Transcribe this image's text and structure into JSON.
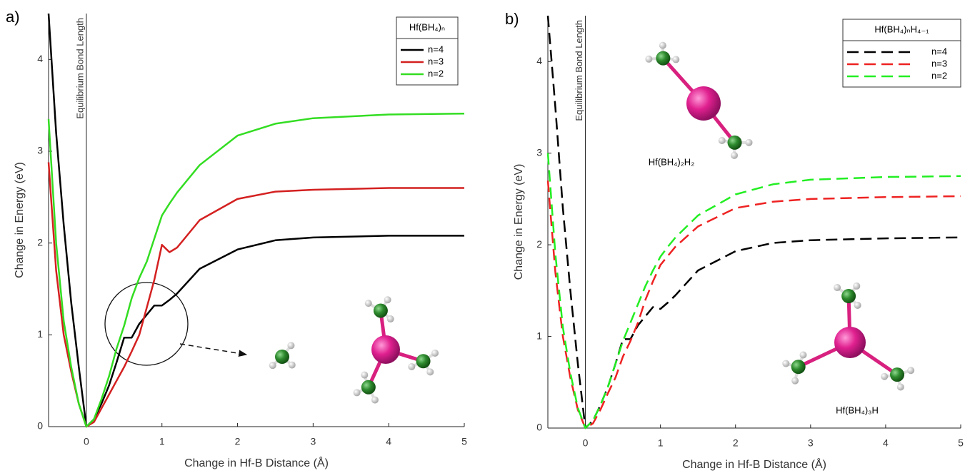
{
  "chart_data": [
    {
      "type": "line",
      "panel_label": "a)",
      "line_style": "solid",
      "x_label": "Change in Hf-B Distance (Å)",
      "y_label": "Change in Energy (eV)",
      "annotation": "Equilibrium Bond Length",
      "legend_title": "Hf(BH₄)ₙ",
      "legend": "upper right",
      "x": [
        -0.5,
        -0.4,
        -0.3,
        -0.2,
        -0.1,
        0,
        0.1,
        0.2,
        0.3,
        0.4,
        0.5,
        0.6,
        0.7,
        0.8,
        0.9,
        1.0,
        1.1,
        1.2,
        1.5,
        2,
        2.5,
        3,
        4,
        5
      ],
      "series": [
        {
          "name": "n=4",
          "color": "#000000",
          "values": [
            4.5,
            3.2,
            2.2,
            1.35,
            0.65,
            0,
            0.08,
            0.25,
            0.45,
            0.7,
            0.97,
            0.97,
            1.12,
            1.22,
            1.32,
            1.32,
            1.38,
            1.45,
            1.72,
            1.93,
            2.03,
            2.06,
            2.08,
            2.08
          ]
        },
        {
          "name": "n=3",
          "color": "#d42020",
          "values": [
            2.88,
            1.7,
            1.0,
            0.6,
            0.25,
            0,
            0.05,
            0.2,
            0.35,
            0.5,
            0.65,
            0.82,
            1.0,
            1.3,
            1.6,
            1.98,
            1.9,
            1.95,
            2.25,
            2.48,
            2.56,
            2.58,
            2.6,
            2.6
          ]
        },
        {
          "name": "n=2",
          "color": "#33dd22",
          "values": [
            3.35,
            2.0,
            1.15,
            0.65,
            0.25,
            0,
            0.08,
            0.3,
            0.55,
            0.85,
            1.1,
            1.4,
            1.62,
            1.8,
            2.05,
            2.3,
            2.43,
            2.55,
            2.85,
            3.17,
            3.3,
            3.36,
            3.4,
            3.41
          ]
        }
      ],
      "xlim": [
        -0.5,
        5
      ],
      "ylim": [
        0,
        4.5
      ],
      "xticks": [
        0,
        1,
        2,
        3,
        4,
        5
      ],
      "yticks": [
        0,
        1,
        2,
        3,
        4
      ]
    },
    {
      "type": "line",
      "panel_label": "b)",
      "line_style": "dashed",
      "x_label": "Change in Hf-B Distance (Å)",
      "y_label": "Change in Energy (eV)",
      "annotation": "Equilibrium Bond Length",
      "legend_title": "Hf(BH₄)ₙH₄₋₁",
      "legend": "upper right",
      "molecule_labels": [
        "Hf(BH₄)₂H₂",
        "Hf(BH₄)₃H"
      ],
      "x": [
        -0.5,
        -0.4,
        -0.3,
        -0.2,
        -0.1,
        0,
        0.1,
        0.2,
        0.3,
        0.4,
        0.5,
        0.6,
        0.7,
        0.8,
        0.9,
        1.0,
        1.1,
        1.2,
        1.5,
        2,
        2.5,
        3,
        4,
        5
      ],
      "series": [
        {
          "name": "n=4",
          "color": "#000000",
          "values": [
            4.5,
            3.5,
            2.4,
            1.5,
            0.7,
            0,
            0.08,
            0.25,
            0.45,
            0.7,
            0.97,
            0.97,
            1.12,
            1.22,
            1.32,
            1.3,
            1.37,
            1.45,
            1.72,
            1.93,
            2.02,
            2.05,
            2.07,
            2.08
          ]
        },
        {
          "name": "n=3",
          "color": "#ee2222",
          "values": [
            2.7,
            1.7,
            1.0,
            0.55,
            0.2,
            0,
            0.05,
            0.2,
            0.38,
            0.55,
            0.78,
            0.95,
            1.15,
            1.4,
            1.6,
            1.78,
            1.88,
            1.98,
            2.2,
            2.4,
            2.47,
            2.5,
            2.52,
            2.53
          ]
        },
        {
          "name": "n=2",
          "color": "#22ee22",
          "values": [
            3.0,
            1.9,
            1.1,
            0.6,
            0.22,
            0,
            0.08,
            0.25,
            0.45,
            0.7,
            0.95,
            1.15,
            1.35,
            1.55,
            1.72,
            1.87,
            1.98,
            2.08,
            2.32,
            2.55,
            2.66,
            2.71,
            2.74,
            2.75
          ]
        }
      ],
      "xlim": [
        -0.5,
        5
      ],
      "ylim": [
        0,
        4.5
      ],
      "xticks": [
        0,
        1,
        2,
        3,
        4,
        5
      ],
      "yticks": [
        0,
        1,
        2,
        3,
        4
      ]
    }
  ]
}
